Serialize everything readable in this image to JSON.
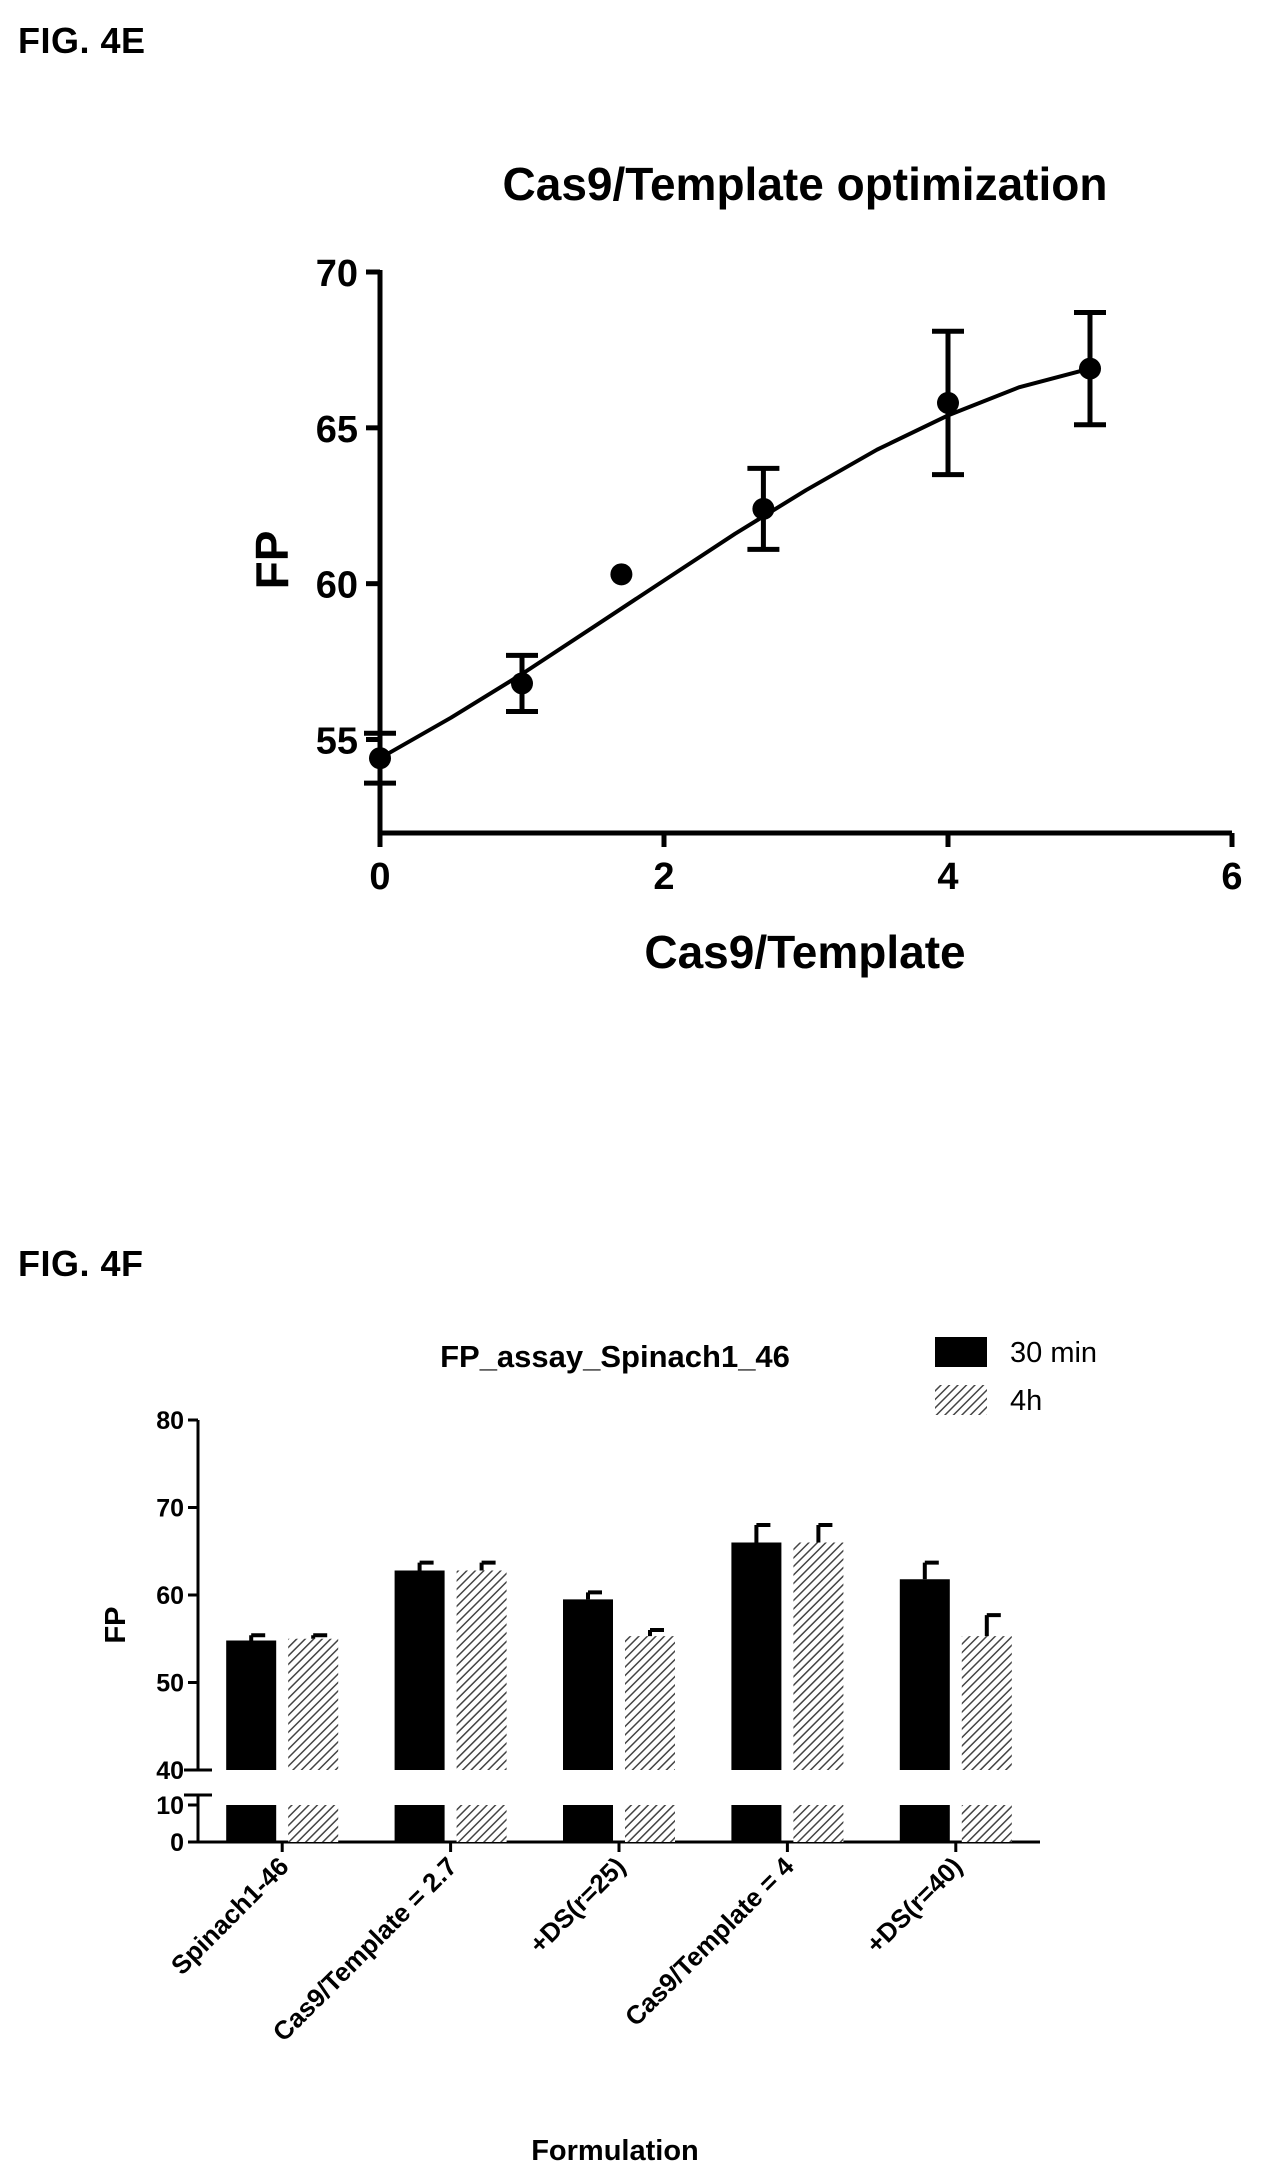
{
  "figures": {
    "e_label": "FIG. 4E",
    "f_label": "FIG. 4F"
  },
  "chart_data": [
    {
      "type": "scatter",
      "title": "Cas9/Template optimization",
      "xlabel": "Cas9/Template",
      "ylabel": "FP",
      "xlim": [
        0,
        6
      ],
      "ylim": [
        52,
        70
      ],
      "x_ticks": [
        "0",
        "2",
        "4",
        "6"
      ],
      "y_ticks": [
        "55",
        "60",
        "65",
        "70"
      ],
      "grid": false,
      "points": [
        {
          "x": 0,
          "y": 54.4,
          "err": 0.8
        },
        {
          "x": 1,
          "y": 56.8,
          "err": 0.9
        },
        {
          "x": 1.7,
          "y": 60.3,
          "err": 0
        },
        {
          "x": 2.7,
          "y": 62.4,
          "err": 1.3
        },
        {
          "x": 4,
          "y": 65.8,
          "err": 2.3
        },
        {
          "x": 5,
          "y": 66.9,
          "err": 1.8
        }
      ],
      "fit": {
        "x": [
          0,
          0.5,
          1,
          1.5,
          2,
          2.5,
          3,
          3.5,
          4,
          4.5,
          5
        ],
        "y": [
          54.4,
          55.7,
          57.1,
          58.6,
          60.1,
          61.6,
          63.0,
          64.3,
          65.4,
          66.3,
          66.9
        ]
      }
    },
    {
      "type": "bar",
      "title": "FP_assay_Spinach1_46",
      "xlabel": "Formulation",
      "ylabel": "FP",
      "categories": [
        "Spinach1-46",
        "Cas9/Template = 2.7",
        "+DS(r=25)",
        "Cas9/Template = 4",
        "+DS(r=40)"
      ],
      "y_break": {
        "lower": [
          0,
          10
        ],
        "upper": [
          40,
          80
        ]
      },
      "y_ticks_upper": [
        "40",
        "50",
        "60",
        "70",
        "80"
      ],
      "y_ticks_lower": [
        "0",
        "10"
      ],
      "legend_position": "top-right",
      "series": [
        {
          "name": "30 min",
          "color": "#000000",
          "values": [
            54.8,
            62.8,
            59.5,
            66.0,
            61.8
          ],
          "errors": [
            0.6,
            0.9,
            0.8,
            2.0,
            1.9
          ]
        },
        {
          "name": "4h",
          "color": "hatched",
          "values": [
            55.0,
            62.8,
            55.3,
            66.0,
            55.3
          ],
          "errors": [
            0.4,
            0.9,
            0.7,
            2.0,
            2.4
          ]
        }
      ]
    }
  ]
}
